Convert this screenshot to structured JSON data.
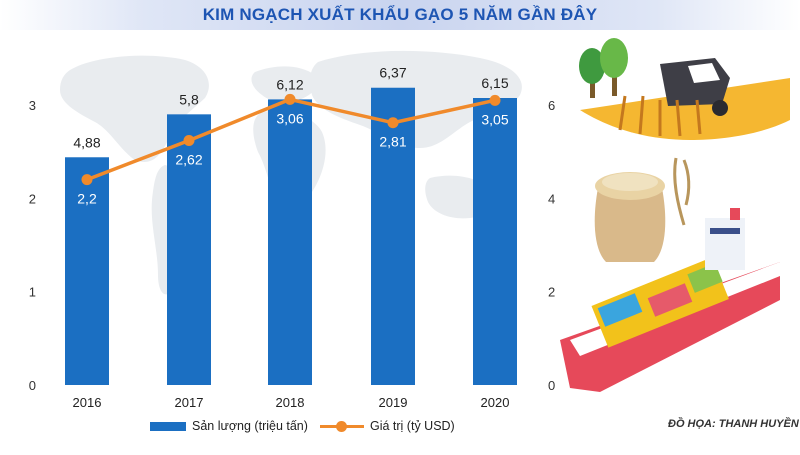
{
  "title": "KIM NGẠCH XUẤT KHẨU GẠO 5 NĂM GẦN ĐÂY",
  "credit": "ĐỒ HỌA: THANH HUYỀN",
  "colors": {
    "bar": "#1b6fc2",
    "line": "#f08a2b",
    "title": "#1d55b3"
  },
  "chart_data": {
    "type": "bar",
    "categories": [
      "2016",
      "2017",
      "2018",
      "2019",
      "2020"
    ],
    "series": [
      {
        "name": "Sản lượng (triệu tấn)",
        "type": "bar",
        "axis": "right",
        "values": [
          4.88,
          5.8,
          6.12,
          6.37,
          6.15
        ],
        "labels": [
          "4,88",
          "5,8",
          "6,12",
          "6,37",
          "6,15"
        ]
      },
      {
        "name": "Giá trị (tỷ USD)",
        "type": "line",
        "axis": "left",
        "values": [
          2.2,
          2.62,
          3.06,
          2.81,
          3.05
        ],
        "labels": [
          "2,2",
          "2,62",
          "3,06",
          "2,81",
          "3,05"
        ]
      }
    ],
    "y_left": {
      "ticks": [
        "0",
        "1",
        "2",
        "3"
      ],
      "ylim": [
        0,
        3
      ]
    },
    "y_right": {
      "ticks": [
        "0",
        "2",
        "4",
        "6"
      ],
      "ylim": [
        0,
        6
      ]
    },
    "legend_position": "bottom",
    "grid": false
  }
}
